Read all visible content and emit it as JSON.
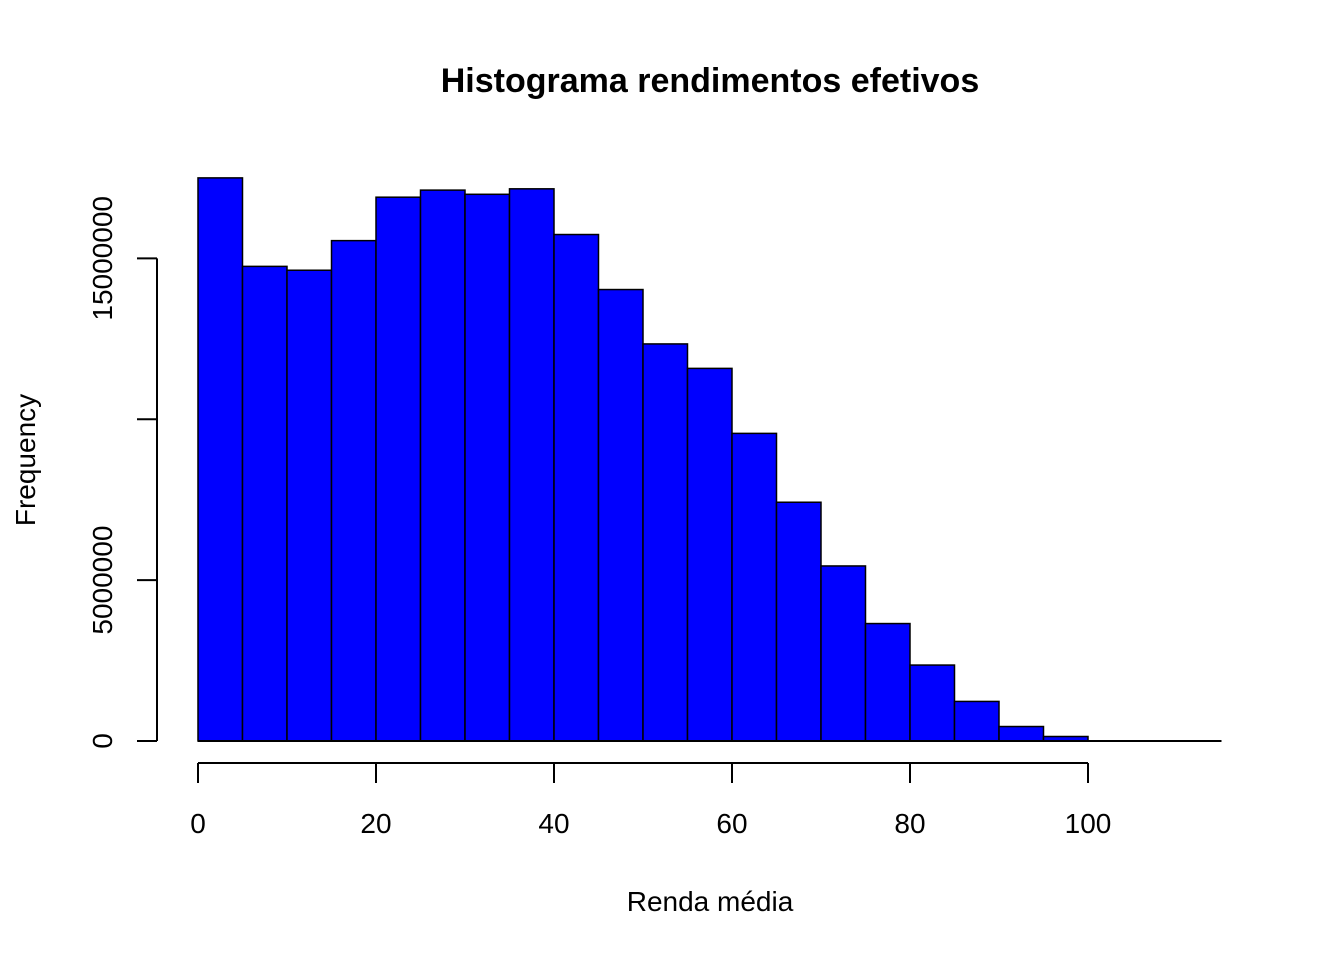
{
  "chart_data": {
    "type": "bar",
    "title": "Histograma rendimentos efetivos",
    "xlabel": "Renda média",
    "ylabel": "Frequency",
    "bin_width": 5,
    "bin_starts": [
      0,
      5,
      10,
      15,
      20,
      25,
      30,
      35,
      40,
      45,
      50,
      55,
      60,
      65,
      70,
      75,
      80,
      85,
      90,
      95,
      100,
      105,
      110
    ],
    "values": [
      17500000,
      14750000,
      14630000,
      15550000,
      16900000,
      17120000,
      16990000,
      17160000,
      15740000,
      14030000,
      12340000,
      11580000,
      9560000,
      7420000,
      5440000,
      3650000,
      2360000,
      1230000,
      450000,
      140000,
      0,
      0,
      0
    ],
    "xlim": [
      0,
      115
    ],
    "ylim": [
      0,
      17500000
    ],
    "x_ticks": [
      0,
      20,
      40,
      60,
      80,
      100
    ],
    "y_ticks": [
      0,
      5000000,
      10000000,
      15000000
    ],
    "y_tick_labels": [
      "0",
      "5000000",
      "",
      "15000000"
    ],
    "bar_color": "#0000ff",
    "border_color": "#000000",
    "grid": false,
    "legend": "none"
  }
}
